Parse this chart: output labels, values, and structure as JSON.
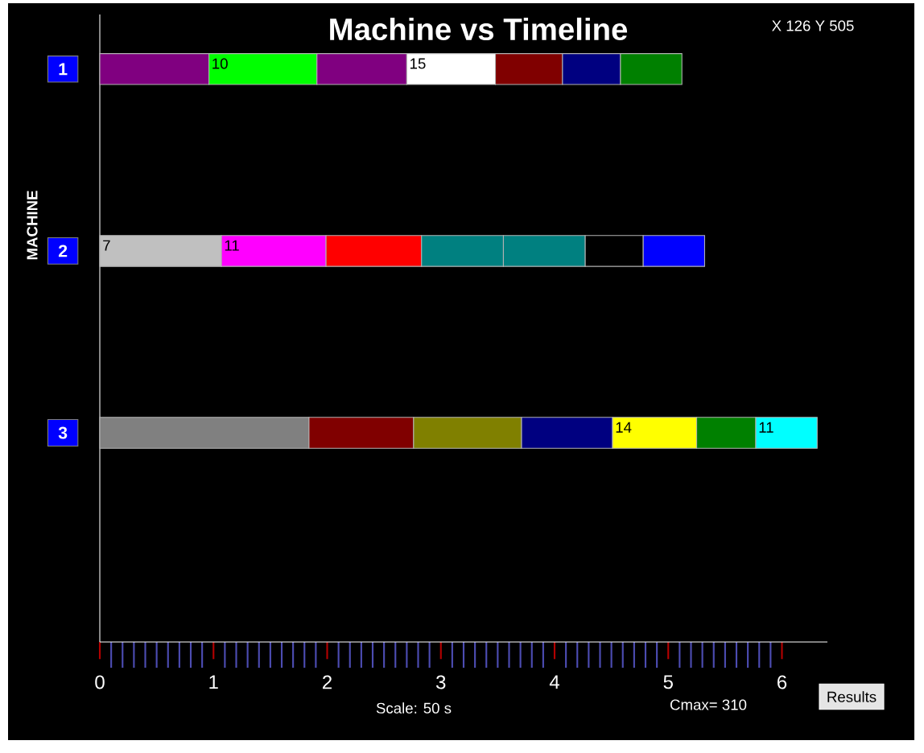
{
  "chart_data": {
    "type": "bar",
    "orientation": "horizontal",
    "stacked": true,
    "title": "Machine vs Timeline",
    "xlabel": "Scale: 50 s",
    "ylabel": "MACHINE",
    "categories": [
      "1",
      "2",
      "3"
    ],
    "xlim": [
      0,
      6.4
    ],
    "xticks": [
      0,
      1,
      2,
      3,
      4,
      5,
      6
    ],
    "series": [
      {
        "values": [
          0.96,
          1.07,
          1.84
        ],
        "colors": [
          "#800080",
          "#c0c0c0",
          "#808080"
        ]
      },
      {
        "values": [
          0.95,
          0.92,
          0.92
        ],
        "colors": [
          "#00ff00",
          "#ff00ff",
          "#800000"
        ]
      },
      {
        "values": [
          0.79,
          0.84,
          0.95
        ],
        "colors": [
          "#800080",
          "#ff0000",
          "#808000"
        ]
      },
      {
        "values": [
          0.78,
          0.72,
          0.8
        ],
        "colors": [
          "#ffffff",
          "#008080",
          "#000080"
        ]
      },
      {
        "values": [
          0.59,
          0.72,
          0.74
        ],
        "colors": [
          "#800000",
          "#008080",
          "#ffff00"
        ]
      },
      {
        "values": [
          0.51,
          0.51,
          0.52
        ],
        "colors": [
          "#000080",
          "#000000",
          "#008000"
        ]
      },
      {
        "values": [
          0.54,
          0.54,
          0.54
        ],
        "colors": [
          "#008000",
          "#0000ff",
          "#00ffff"
        ]
      }
    ],
    "annotations": [
      {
        "text": "10",
        "x": 0.96,
        "y": "1"
      },
      {
        "text": "15",
        "x": 2.7,
        "y": "1"
      },
      {
        "text": "7",
        "x": 0,
        "y": "2"
      },
      {
        "text": "11",
        "x": 1.07,
        "y": "2"
      },
      {
        "text": "14",
        "x": 4.51,
        "y": "3"
      },
      {
        "text": "11",
        "x": 5.77,
        "y": "3"
      },
      "X 126 Y 505",
      "Cmax= 310",
      "Results"
    ]
  }
}
